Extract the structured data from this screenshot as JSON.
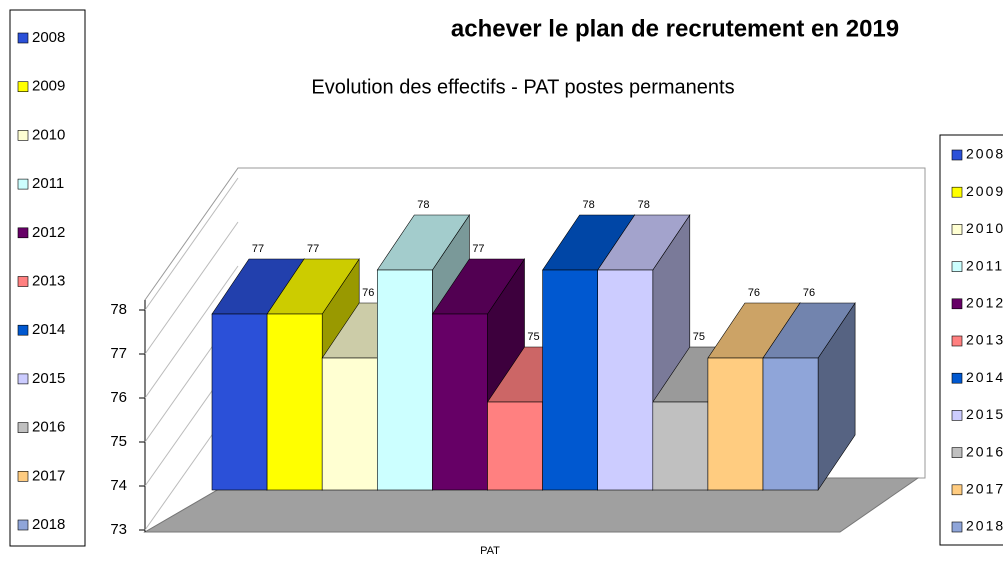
{
  "heading": "achever le plan de recrutement en 2019",
  "chart_data": {
    "type": "bar3d",
    "title": "Evolution des effectifs - PAT postes permanents",
    "categories": [
      "PAT"
    ],
    "x_label": "PAT",
    "series": [
      {
        "name": "2008",
        "color": "#2b50d8",
        "values": [
          77
        ]
      },
      {
        "name": "2009",
        "color": "#ffff00",
        "values": [
          77
        ]
      },
      {
        "name": "2010",
        "color": "#ffffd2",
        "values": [
          76
        ]
      },
      {
        "name": "2011",
        "color": "#ccffff",
        "values": [
          78
        ]
      },
      {
        "name": "2012",
        "color": "#660066",
        "values": [
          77
        ]
      },
      {
        "name": "2013",
        "color": "#ff8080",
        "values": [
          75
        ]
      },
      {
        "name": "2014",
        "color": "#0058d0",
        "values": [
          78
        ]
      },
      {
        "name": "2015",
        "color": "#ccccff",
        "values": [
          78
        ]
      },
      {
        "name": "2016",
        "color": "#c0c0c0",
        "values": [
          75
        ]
      },
      {
        "name": "2017",
        "color": "#ffcc80",
        "values": [
          76
        ]
      },
      {
        "name": "2018",
        "color": "#8fa5d9",
        "values": [
          76
        ]
      }
    ],
    "ylim": [
      73,
      78
    ],
    "yticks": [
      73,
      74,
      75,
      76,
      77,
      78
    ]
  }
}
